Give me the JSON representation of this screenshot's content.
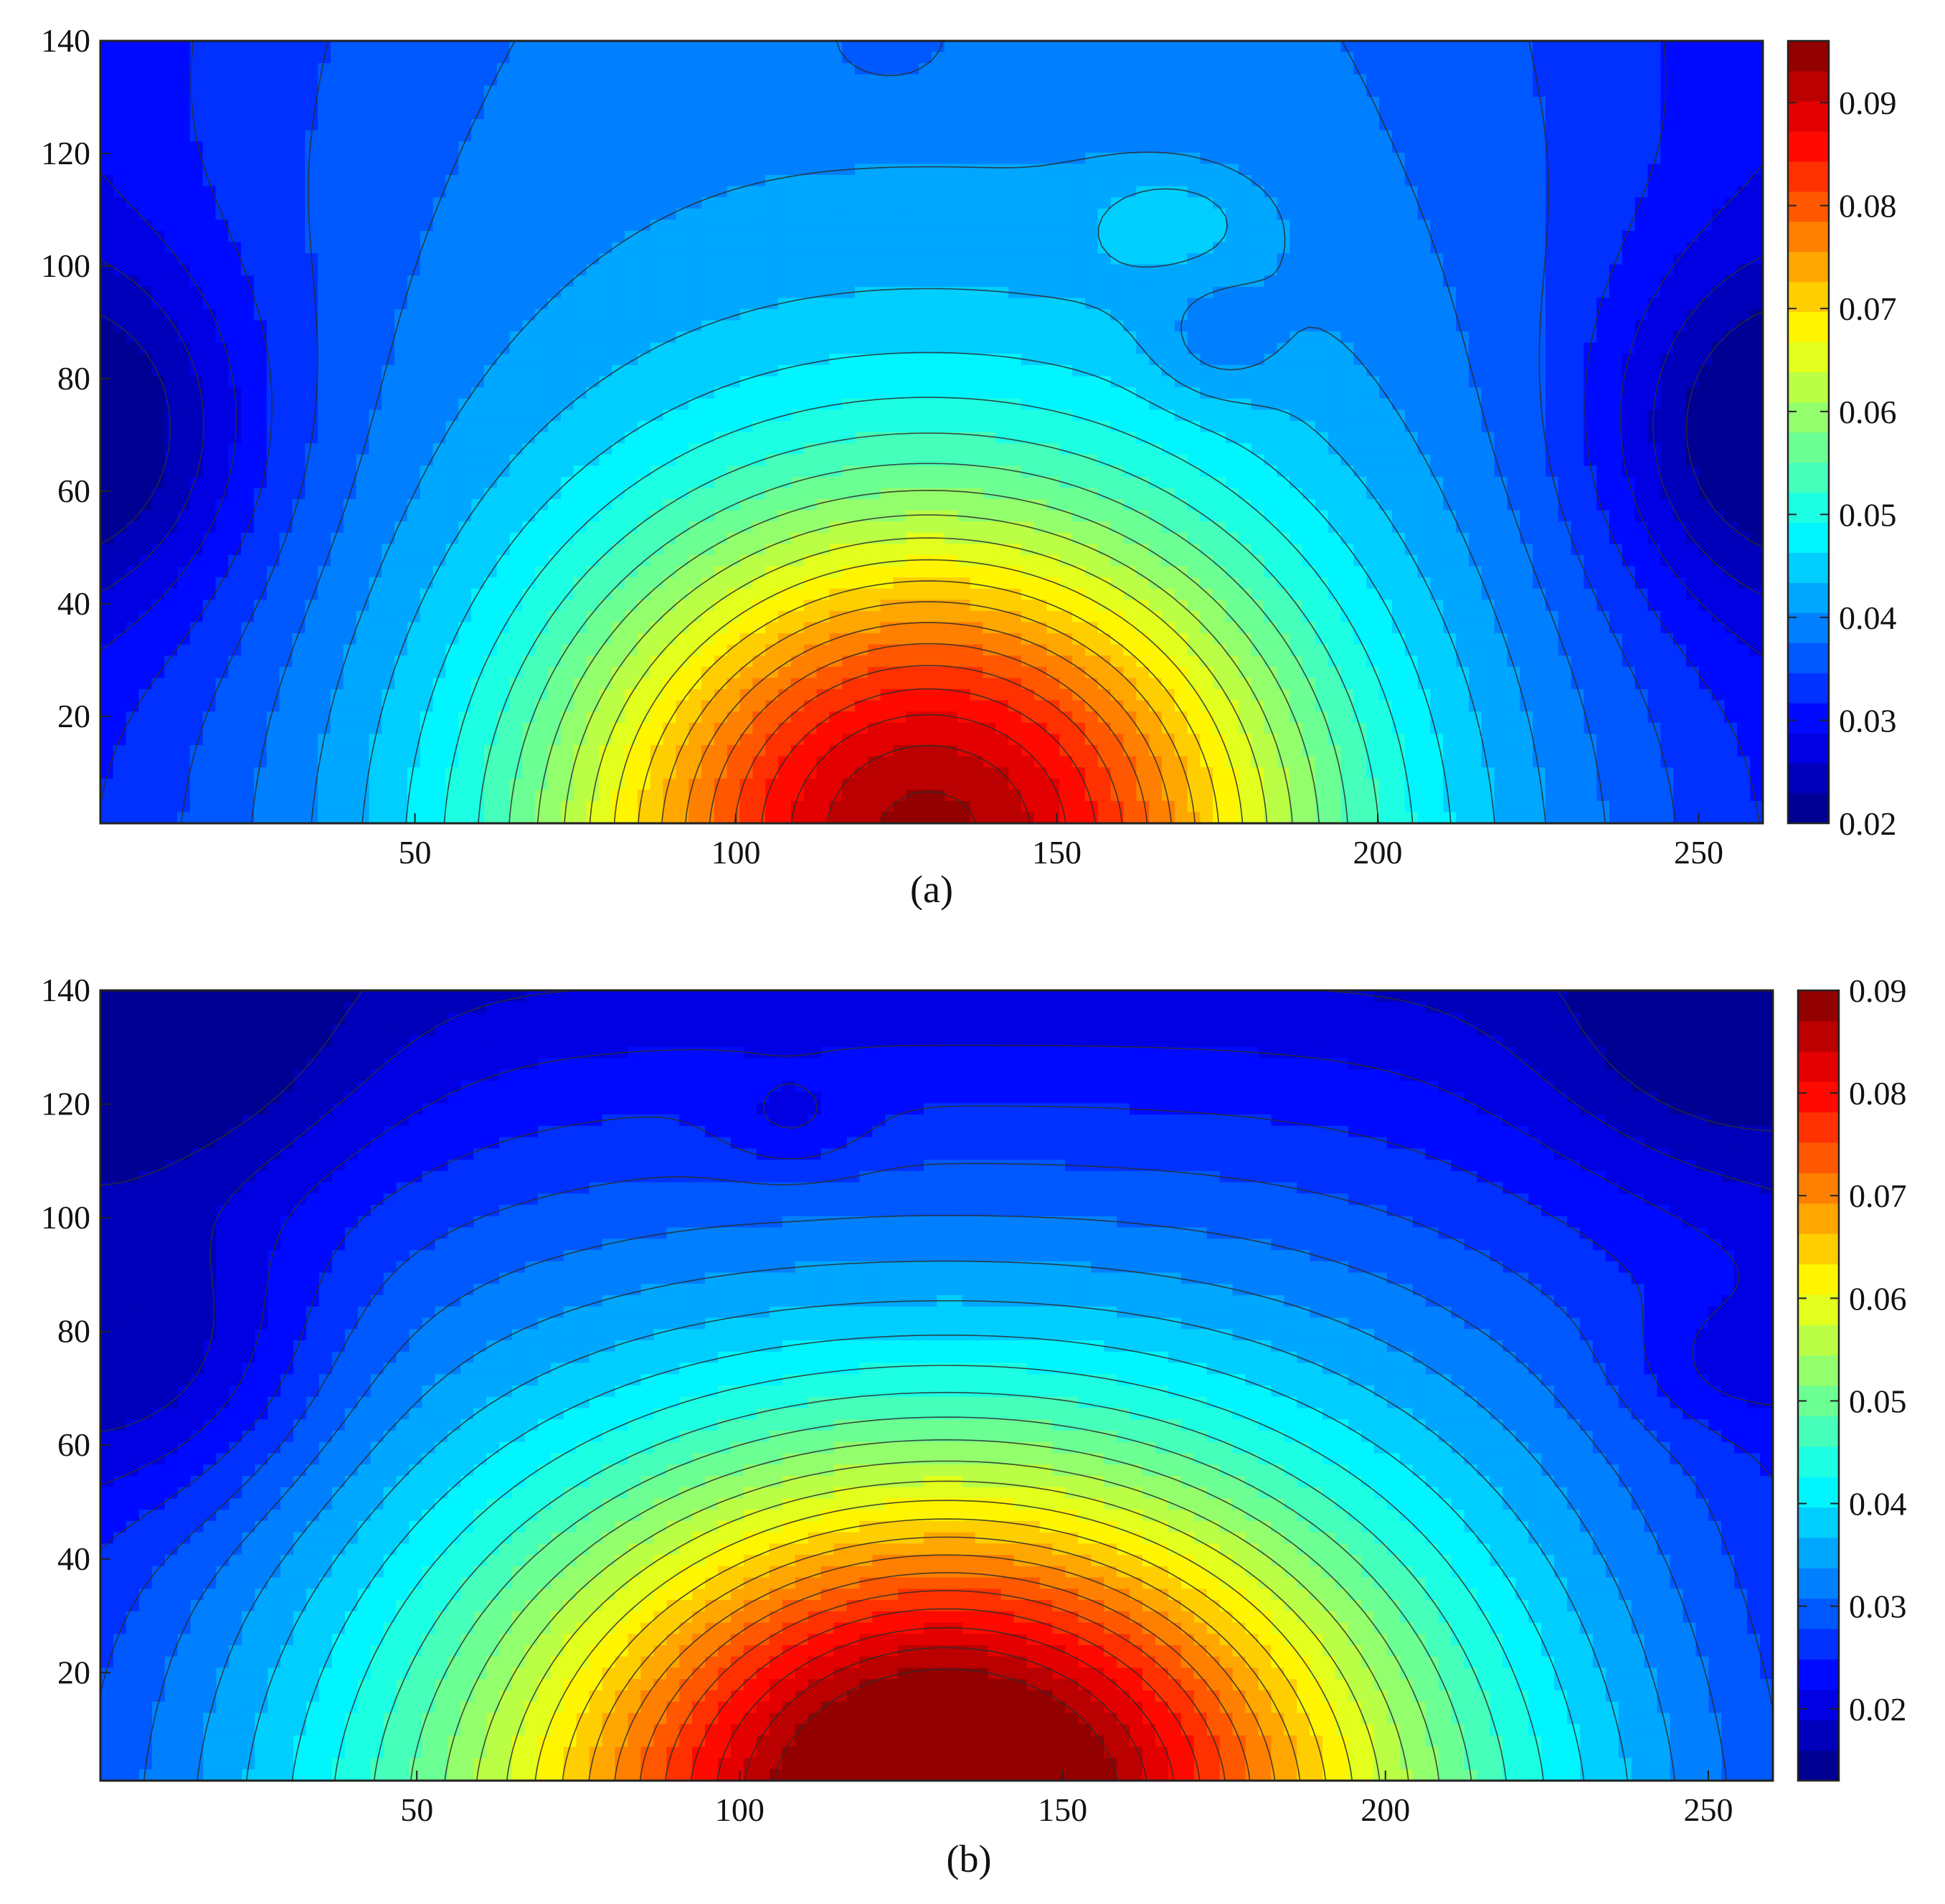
{
  "chart_data": [
    {
      "type": "heatmap",
      "subtype": "filled-contour",
      "panel_label": "(a)",
      "xlim": [
        1,
        260
      ],
      "ylim": [
        1,
        140
      ],
      "x_ticks": [
        50,
        100,
        150,
        200,
        250
      ],
      "y_ticks": [
        20,
        40,
        60,
        80,
        100,
        120,
        140
      ],
      "colormap": "jet",
      "clim": [
        0.02,
        0.096
      ],
      "colorbar_ticks": [
        0.02,
        0.03,
        0.04,
        0.05,
        0.06,
        0.07,
        0.08,
        0.09
      ],
      "colorbar_tick_labels": [
        "0.02",
        "0.03",
        "0.04",
        "0.05",
        "0.06",
        "0.07",
        "0.08",
        "0.09"
      ],
      "contour_levels": 26,
      "grid": false,
      "features": [
        {
          "kind": "peak",
          "x": 130,
          "y": 2,
          "value": 0.096
        },
        {
          "kind": "minimum",
          "x": 5,
          "y": 70,
          "value": 0.022
        },
        {
          "kind": "minimum",
          "x": 255,
          "y": 70,
          "value": 0.022
        },
        {
          "kind": "local-max",
          "x": 168,
          "y": 108,
          "value": 0.048
        },
        {
          "kind": "local-min",
          "x": 175,
          "y": 86,
          "value": 0.042
        },
        {
          "kind": "local-min",
          "x": 124,
          "y": 139,
          "value": 0.042
        }
      ]
    },
    {
      "type": "heatmap",
      "subtype": "filled-contour",
      "panel_label": "(b)",
      "xlim": [
        1,
        260
      ],
      "ylim": [
        1,
        140
      ],
      "x_ticks": [
        50,
        100,
        150,
        200,
        250
      ],
      "y_ticks": [
        20,
        40,
        60,
        80,
        100,
        120,
        140
      ],
      "colormap": "jet",
      "clim": [
        0.013,
        0.09
      ],
      "colorbar_ticks": [
        0.02,
        0.03,
        0.04,
        0.05,
        0.06,
        0.07,
        0.08,
        0.09
      ],
      "colorbar_tick_labels": [
        "0.02",
        "0.03",
        "0.04",
        "0.05",
        "0.06",
        "0.07",
        "0.08",
        "0.09"
      ],
      "contour_levels": 26,
      "grid": false,
      "features": [
        {
          "kind": "peak",
          "x": 132,
          "y": 2,
          "value": 0.09
        },
        {
          "kind": "minimum",
          "x": 10,
          "y": 75,
          "value": 0.014
        },
        {
          "kind": "minimum",
          "x": 12,
          "y": 130,
          "value": 0.014
        },
        {
          "kind": "minimum",
          "x": 252,
          "y": 130,
          "value": 0.015
        },
        {
          "kind": "local-min",
          "x": 252,
          "y": 74,
          "value": 0.02
        },
        {
          "kind": "local-min",
          "x": 108,
          "y": 116,
          "value": 0.024
        }
      ]
    }
  ]
}
